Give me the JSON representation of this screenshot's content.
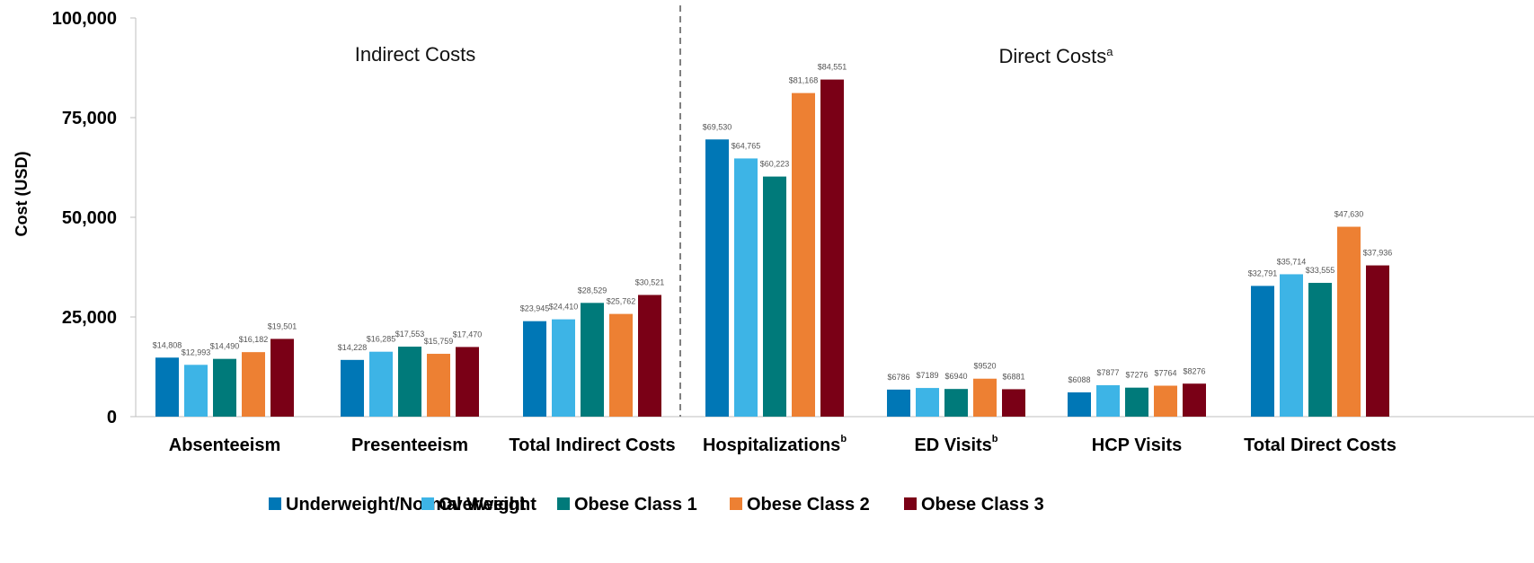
{
  "chart_data": {
    "type": "bar",
    "ylabel": "Cost (USD)",
    "ylim": [
      0,
      100000
    ],
    "yticks": [
      0,
      25000,
      50000,
      75000,
      100000
    ],
    "ytick_labels": [
      "0",
      "25,000",
      "50,000",
      "75,000",
      "100,000"
    ],
    "grid": false,
    "legend_position": "bottom",
    "categories": [
      {
        "label": "Absenteeism",
        "sup": ""
      },
      {
        "label": "Presenteeism",
        "sup": ""
      },
      {
        "label": "Total Indirect Costs",
        "sup": ""
      },
      {
        "label": "Hospitalizations",
        "sup": "b"
      },
      {
        "label": "ED Visits",
        "sup": "b"
      },
      {
        "label": "HCP Visits",
        "sup": ""
      },
      {
        "label": "Total Direct Costs",
        "sup": ""
      }
    ],
    "sections": [
      {
        "label": "Indirect Costs",
        "sup": ""
      },
      {
        "label": "Direct Costs",
        "sup": "a"
      }
    ],
    "series": [
      {
        "name": "Underweight/Normal Weight",
        "color": "#0077B6",
        "values": [
          14808,
          14228,
          23945,
          69530,
          6786,
          6088,
          32791
        ],
        "labels": [
          "$14,808",
          "$14,228",
          "$23,945",
          "$69,530",
          "$6786",
          "$6088",
          "$32,791"
        ]
      },
      {
        "name": "Overweight",
        "color": "#3DB4E6",
        "values": [
          12993,
          16285,
          24410,
          64765,
          7189,
          7877,
          35714
        ],
        "labels": [
          "$12,993",
          "$16,285",
          "$24,410",
          "$64,765",
          "$7189",
          "$7877",
          "$35,714"
        ]
      },
      {
        "name": "Obese Class 1",
        "color": "#007A7A",
        "values": [
          14490,
          17553,
          28529,
          60223,
          6940,
          7276,
          33555
        ],
        "labels": [
          "$14,490",
          "$17,553",
          "$28,529",
          "$60,223",
          "$6940",
          "$7276",
          "$33,555"
        ]
      },
      {
        "name": "Obese Class 2",
        "color": "#ED8033",
        "values": [
          16182,
          15759,
          25762,
          81168,
          9520,
          7764,
          47630
        ],
        "labels": [
          "$16,182",
          "$15,759",
          "$25,762",
          "$81,168",
          "$9520",
          "$7764",
          "$47,630"
        ]
      },
      {
        "name": "Obese Class 3",
        "color": "#7A0016",
        "values": [
          19501,
          17470,
          30521,
          84551,
          6881,
          8276,
          37936
        ],
        "labels": [
          "$19,501",
          "$17,470",
          "$30,521",
          "$84,551",
          "$6881",
          "$8276",
          "$37,936"
        ]
      }
    ]
  }
}
